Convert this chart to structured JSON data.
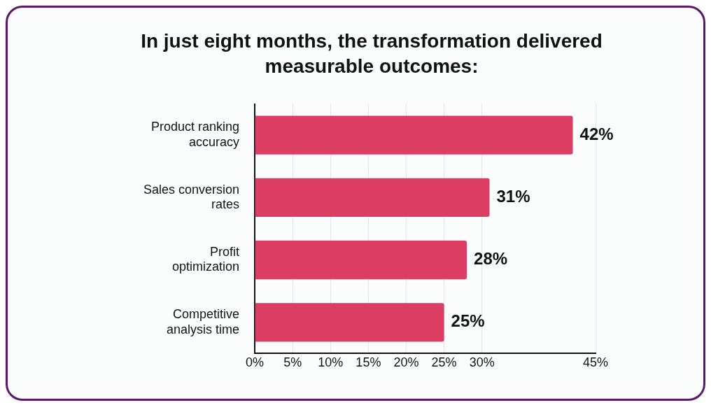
{
  "chart_data": {
    "type": "bar",
    "orientation": "horizontal",
    "title": "In just eight months, the transformation delivered measurable outcomes:",
    "categories": [
      "Product ranking accuracy",
      "Sales conversion rates",
      "Profit optimization",
      "Competitive analysis time"
    ],
    "values": [
      42,
      31,
      28,
      25
    ],
    "color": "#dc3d63",
    "xlim": [
      0,
      45
    ],
    "xticks": [
      {
        "value": 0,
        "label": "0%"
      },
      {
        "value": 5,
        "label": "5%"
      },
      {
        "value": 10,
        "label": "10%"
      },
      {
        "value": 15,
        "label": "15%"
      },
      {
        "value": 20,
        "label": "20%"
      },
      {
        "value": 25,
        "label": "25%"
      },
      {
        "value": 30,
        "label": "30%"
      },
      {
        "value": 45,
        "label": "45%"
      }
    ],
    "value_labels": [
      "42%",
      "31%",
      "28%",
      "25%"
    ],
    "grid": "x",
    "legend": false
  }
}
